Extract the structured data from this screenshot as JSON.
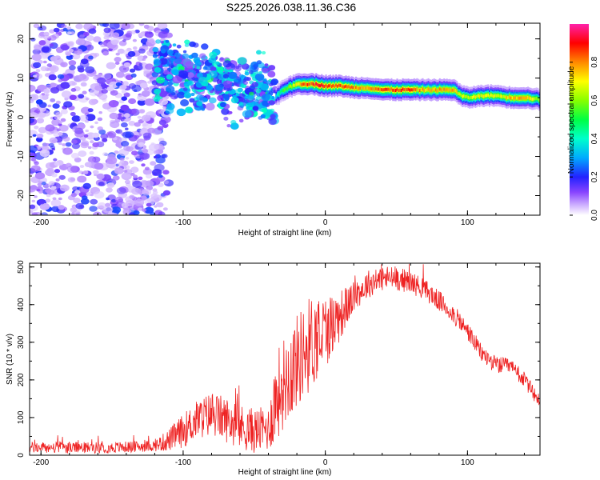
{
  "title": "S225.2026.038.11.36.C36",
  "colors": {
    "snr_line": "#ee2222",
    "axis": "#000000",
    "scatter_base": "#8844ff"
  },
  "chart_data": [
    {
      "type": "heatmap",
      "name": "spectrogram",
      "xlabel": "Height of straight line (km)",
      "ylabel": "Frequency (Hz)",
      "xlim": [
        -208,
        151
      ],
      "ylim": [
        -25,
        24
      ],
      "xticks": [
        -200,
        -100,
        0,
        100
      ],
      "xtick_labels": [
        "-200",
        "-100",
        "0",
        "100"
      ],
      "yticks": [
        -20,
        -10,
        0,
        10,
        20
      ],
      "ytick_labels": [
        "-20",
        "-10",
        "0",
        "10",
        "20"
      ],
      "colorbar": {
        "label": "Normalized spectral amplitude",
        "range": [
          0,
          1
        ],
        "ticks": [
          0.0,
          0.2,
          0.4,
          0.6,
          0.8
        ],
        "tick_labels": [
          "0.0",
          "0.2",
          "0.4",
          "0.6",
          "0.8"
        ]
      },
      "noise_region": {
        "x_range": [
          -208,
          -120
        ],
        "y_range": [
          -25,
          24
        ],
        "amplitude": 0.15
      },
      "transition_region": {
        "x_range": [
          -120,
          -35
        ],
        "y_center_start": 12,
        "y_center_end": 6,
        "spread": 4,
        "amplitude": 0.3
      },
      "signal_ridge": [
        {
          "x": -35,
          "y": 5.5,
          "amp": 0.4
        },
        {
          "x": -30,
          "y": 7.0,
          "amp": 0.55
        },
        {
          "x": -20,
          "y": 8.5,
          "amp": 0.8
        },
        {
          "x": -10,
          "y": 8.5,
          "amp": 0.95
        },
        {
          "x": 0,
          "y": 8.0,
          "amp": 0.95
        },
        {
          "x": 10,
          "y": 8.0,
          "amp": 0.9
        },
        {
          "x": 20,
          "y": 7.5,
          "amp": 0.85
        },
        {
          "x": 30,
          "y": 7.5,
          "amp": 0.8
        },
        {
          "x": 40,
          "y": 7.0,
          "amp": 0.9
        },
        {
          "x": 50,
          "y": 7.0,
          "amp": 0.95
        },
        {
          "x": 60,
          "y": 7.0,
          "amp": 0.9
        },
        {
          "x": 70,
          "y": 7.0,
          "amp": 0.8
        },
        {
          "x": 80,
          "y": 7.0,
          "amp": 0.85
        },
        {
          "x": 90,
          "y": 7.0,
          "amp": 0.8
        },
        {
          "x": 95,
          "y": 5.5,
          "amp": 0.7
        },
        {
          "x": 100,
          "y": 5.0,
          "amp": 0.7
        },
        {
          "x": 110,
          "y": 5.5,
          "amp": 0.75
        },
        {
          "x": 120,
          "y": 5.5,
          "amp": 0.7
        },
        {
          "x": 130,
          "y": 5.0,
          "amp": 0.8
        },
        {
          "x": 140,
          "y": 5.0,
          "amp": 0.85
        },
        {
          "x": 151,
          "y": 4.5,
          "amp": 0.6
        }
      ]
    },
    {
      "type": "line",
      "name": "snr",
      "xlabel": "Height of straight line (km)",
      "ylabel": "SNR (10 * v/v)",
      "xlim": [
        -208,
        151
      ],
      "ylim": [
        0,
        510
      ],
      "xticks": [
        -200,
        -100,
        0,
        100
      ],
      "xtick_labels": [
        "-200",
        "-100",
        "0",
        "100"
      ],
      "yticks": [
        0,
        100,
        200,
        300,
        400,
        500
      ],
      "ytick_labels": [
        "0",
        "100",
        "200",
        "300",
        "400",
        "500"
      ],
      "envelope": {
        "x": [
          -208,
          -150,
          -120,
          -110,
          -100,
          -90,
          -80,
          -70,
          -60,
          -50,
          -40,
          -35,
          -30,
          -20,
          -10,
          0,
          10,
          20,
          30,
          40,
          50,
          60,
          70,
          80,
          90,
          100,
          110,
          120,
          130,
          140,
          151
        ],
        "y": [
          20,
          20,
          25,
          40,
          65,
          95,
          110,
          95,
          75,
          65,
          70,
          150,
          190,
          250,
          300,
          330,
          370,
          420,
          455,
          470,
          470,
          460,
          440,
          410,
          375,
          330,
          270,
          240,
          235,
          200,
          140
        ]
      },
      "noise_amplitude": {
        "x": [
          -208,
          -120,
          -100,
          -80,
          -40,
          -35,
          -10,
          20,
          60,
          100,
          151
        ],
        "y": [
          15,
          15,
          45,
          60,
          60,
          120,
          130,
          40,
          30,
          25,
          20
        ]
      }
    }
  ]
}
